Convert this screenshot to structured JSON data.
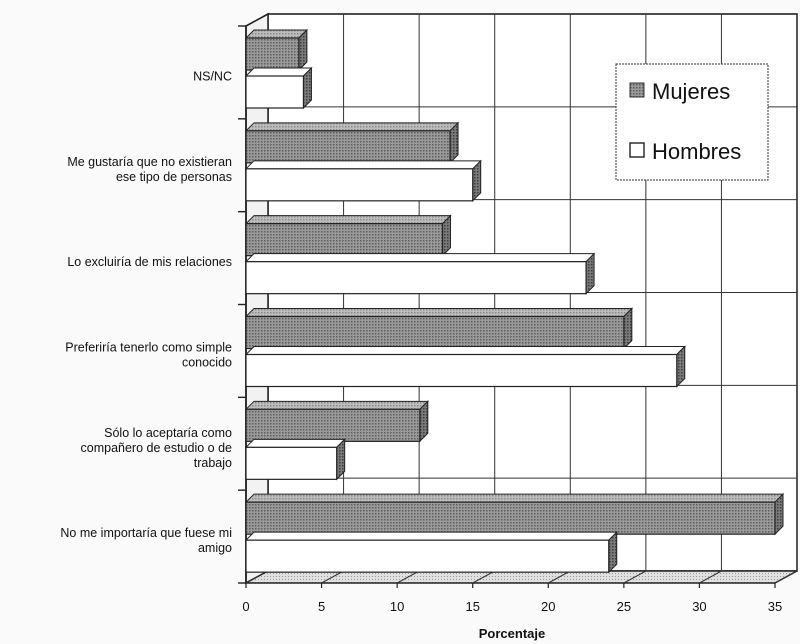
{
  "chart_data": {
    "type": "bar",
    "orientation": "horizontal",
    "style": "3d",
    "categories": [
      "NS/NC",
      "Me gustaría que no existieran ese tipo de personas",
      "Lo excluiría de mis relaciones",
      "Preferiría tenerlo como simple conocido",
      "Sólo lo aceptaría como compañero de estudio o de trabajo",
      "No me importaría que fuese mi amigo"
    ],
    "category_label_lines": [
      [
        "NS/NC"
      ],
      [
        "Me gustaría que no existieran",
        "ese tipo de personas"
      ],
      [
        "Lo excluiría de mis relaciones"
      ],
      [
        "Preferiría tenerlo como simple",
        "conocido"
      ],
      [
        "Sólo lo aceptaría como",
        "compañero de estudio o de",
        "trabajo"
      ],
      [
        "No me importaría que fuese mi",
        "amigo"
      ]
    ],
    "series": [
      {
        "name": "Mujeres",
        "values": [
          3.5,
          13.5,
          13,
          25,
          11.5,
          35
        ],
        "color": "#8a8a8a"
      },
      {
        "name": "Hombres",
        "values": [
          3.8,
          15,
          22.5,
          28.5,
          6,
          24
        ],
        "color": "#ffffff"
      }
    ],
    "xlabel": "Porcentaje",
    "xlim": [
      0,
      35
    ],
    "xticks": [
      0,
      5,
      10,
      15,
      20,
      25,
      30,
      35
    ],
    "grid": true,
    "legend_position": "top-right"
  }
}
